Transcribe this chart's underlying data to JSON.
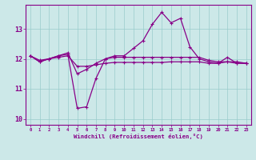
{
  "x": [
    0,
    1,
    2,
    3,
    4,
    5,
    6,
    7,
    8,
    9,
    10,
    11,
    12,
    13,
    14,
    15,
    16,
    17,
    18,
    19,
    20,
    21,
    22,
    23
  ],
  "line_windchill": [
    12.1,
    11.9,
    12.0,
    12.1,
    12.15,
    10.35,
    10.4,
    11.35,
    12.0,
    12.1,
    12.1,
    12.35,
    12.6,
    13.15,
    13.55,
    13.2,
    13.35,
    12.4,
    12.0,
    11.9,
    11.85,
    12.05,
    11.85,
    11.85
  ],
  "line_temp": [
    12.1,
    11.9,
    12.0,
    12.1,
    12.2,
    11.5,
    11.65,
    11.85,
    12.0,
    12.05,
    12.05,
    12.05,
    12.05,
    12.05,
    12.05,
    12.05,
    12.05,
    12.05,
    12.05,
    11.95,
    11.9,
    11.9,
    11.9,
    11.85
  ],
  "line_flat": [
    12.1,
    11.95,
    12.0,
    12.05,
    12.1,
    11.75,
    11.75,
    11.8,
    11.85,
    11.88,
    11.88,
    11.88,
    11.88,
    11.88,
    11.88,
    11.9,
    11.9,
    11.9,
    11.9,
    11.85,
    11.85,
    11.9,
    11.85,
    11.85
  ],
  "bg_color": "#cce8e8",
  "line_color": "#880088",
  "grid_color": "#99cccc",
  "xlabel": "Windchill (Refroidissement éolien,°C)",
  "ylim": [
    9.8,
    13.8
  ],
  "xlim": [
    -0.5,
    23.5
  ],
  "yticks": [
    10,
    11,
    12,
    13
  ],
  "xticks": [
    0,
    1,
    2,
    3,
    4,
    5,
    6,
    7,
    8,
    9,
    10,
    11,
    12,
    13,
    14,
    15,
    16,
    17,
    18,
    19,
    20,
    21,
    22,
    23
  ]
}
